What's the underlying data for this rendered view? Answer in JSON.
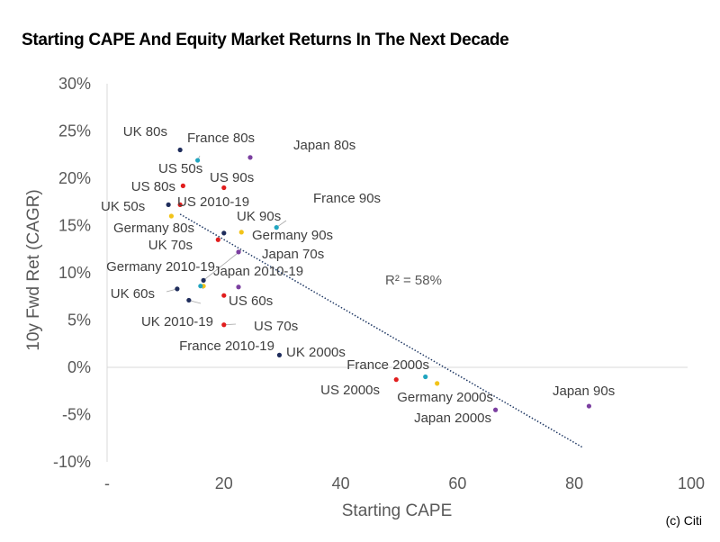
{
  "chart_data": {
    "type": "scatter",
    "title": "Starting CAPE And Equity Market Returns In The Next Decade",
    "xlabel": "Starting CAPE",
    "ylabel": "10y Fwd Ret (CAGR)",
    "xlim": [
      0,
      100
    ],
    "ylim": [
      -10,
      30
    ],
    "x_ticks": [
      "-",
      "20",
      "40",
      "60",
      "80",
      "100"
    ],
    "y_ticks": [
      "30%",
      "25%",
      "20%",
      "15%",
      "10%",
      "5%",
      "0%",
      "-5%",
      "-10%"
    ],
    "annotation": "R² = 58%",
    "credit": "(c) Citi",
    "grid": false,
    "trendline": {
      "style": "dotted",
      "x": [
        12.5,
        81.5
      ],
      "y": [
        16.2,
        -8.5
      ]
    },
    "points": [
      {
        "label": "UK 80s",
        "x": 12.5,
        "y": 23.0,
        "color": "#1f2d5c"
      },
      {
        "label": "France 80s",
        "x": 15.5,
        "y": 21.9,
        "color": "#21a5c0"
      },
      {
        "label": "Japan 80s",
        "x": 24.5,
        "y": 22.2,
        "color": "#7b3fa0"
      },
      {
        "label": "US 50s",
        "x": 13.0,
        "y": 19.2,
        "color": "#e11d1d"
      },
      {
        "label": "US 90s",
        "x": 20.0,
        "y": 19.0,
        "color": "#e11d1d"
      },
      {
        "label": "US 80s",
        "x": 12.5,
        "y": 17.2,
        "color": "#e11d1d"
      },
      {
        "label": "UK 50s",
        "x": 10.5,
        "y": 17.2,
        "color": "#1f2d5c"
      },
      {
        "label": "US 2010-19",
        "x": 11.0,
        "y": 16.0,
        "color": "#f2c318"
      },
      {
        "label": "France 90s",
        "x": 29.0,
        "y": 14.8,
        "color": "#21a5c0"
      },
      {
        "label": "UK 90s",
        "x": 20.0,
        "y": 14.2,
        "color": "#1f2d5c"
      },
      {
        "label": "Germany 80s",
        "x": 19.0,
        "y": 13.5,
        "color": "#e11d1d"
      },
      {
        "label": "Germany 90s",
        "x": 23.0,
        "y": 14.3,
        "color": "#f2c318"
      },
      {
        "label": "UK 70s",
        "x": 22.5,
        "y": 12.2,
        "color": "#7b3fa0"
      },
      {
        "label": "Japan 70s",
        "x": 16.5,
        "y": 9.2,
        "color": "#1f2d5c"
      },
      {
        "label": "Germany 2010-19",
        "x": 16.5,
        "y": 8.6,
        "color": "#f2c318"
      },
      {
        "label": "Japan 2010-19",
        "x": 22.5,
        "y": 8.5,
        "color": "#7b3fa0"
      },
      {
        "label": "UK 60s",
        "x": 12.0,
        "y": 8.3,
        "color": "#1f2d5c"
      },
      {
        "label": "US 60s",
        "x": 20.0,
        "y": 7.6,
        "color": "#e11d1d"
      },
      {
        "label": "UK 2010-19",
        "x": 14.0,
        "y": 7.1,
        "color": "#1f2d5c"
      },
      {
        "label": "US 70s",
        "x": 20.0,
        "y": 4.5,
        "color": "#e11d1d"
      },
      {
        "label": "France 2010-19",
        "x": 16.0,
        "y": 8.6,
        "color": "#21a5c0"
      },
      {
        "label": "UK 2000s",
        "x": 29.5,
        "y": 1.3,
        "color": "#1f2d5c"
      },
      {
        "label": "France 2000s",
        "x": 54.5,
        "y": -1.0,
        "color": "#21a5c0"
      },
      {
        "label": "US 2000s",
        "x": 49.5,
        "y": -1.3,
        "color": "#e11d1d"
      },
      {
        "label": "Germany 2000s",
        "x": 56.5,
        "y": -1.7,
        "color": "#f2c318"
      },
      {
        "label": "Japan 90s",
        "x": 82.5,
        "y": -4.1,
        "color": "#7b3fa0"
      },
      {
        "label": "Japan 2000s",
        "x": 66.5,
        "y": -4.5,
        "color": "#7b3fa0"
      }
    ]
  }
}
